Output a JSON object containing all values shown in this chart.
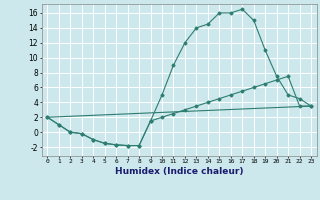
{
  "xlabel": "Humidex (Indice chaleur)",
  "background_color": "#cce8ec",
  "grid_color": "#ffffff",
  "line_color": "#2d7d70",
  "xlim": [
    -0.5,
    23.5
  ],
  "ylim": [
    -3.2,
    17.2
  ],
  "yticks": [
    -2,
    0,
    2,
    4,
    6,
    8,
    10,
    12,
    14,
    16
  ],
  "xticks": [
    0,
    1,
    2,
    3,
    4,
    5,
    6,
    7,
    8,
    9,
    10,
    11,
    12,
    13,
    14,
    15,
    16,
    17,
    18,
    19,
    20,
    21,
    22,
    23
  ],
  "line1_x": [
    0,
    1,
    2,
    3,
    4,
    5,
    6,
    7,
    8,
    9,
    10,
    11,
    12,
    13,
    14,
    15,
    16,
    17,
    18,
    19,
    20,
    21,
    22,
    23
  ],
  "line1_y": [
    2.0,
    1.0,
    0.0,
    -0.2,
    -1.0,
    -1.5,
    -1.7,
    -1.8,
    -1.8,
    1.5,
    5.0,
    9.0,
    12.0,
    14.0,
    14.5,
    16.0,
    16.0,
    16.5,
    15.0,
    11.0,
    7.5,
    5.0,
    4.5,
    3.5
  ],
  "line2_x": [
    0,
    1,
    2,
    3,
    4,
    5,
    6,
    7,
    8,
    9,
    10,
    11,
    12,
    13,
    14,
    15,
    16,
    17,
    18,
    19,
    20,
    21,
    22,
    23
  ],
  "line2_y": [
    2.0,
    1.0,
    0.0,
    -0.2,
    -1.0,
    -1.5,
    -1.7,
    -1.8,
    -1.8,
    1.5,
    2.0,
    2.5,
    3.0,
    3.5,
    4.0,
    4.5,
    5.0,
    5.5,
    6.0,
    6.5,
    7.0,
    7.5,
    3.5,
    3.5
  ],
  "line3_x": [
    0,
    23
  ],
  "line3_y": [
    2.0,
    3.5
  ]
}
